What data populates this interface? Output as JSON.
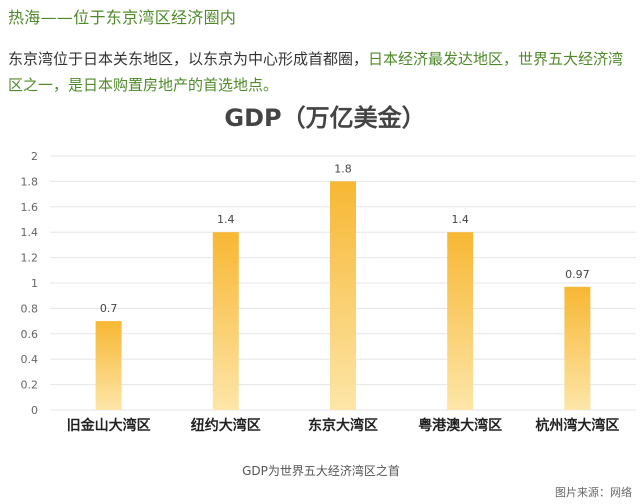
{
  "section_heading": "热海——位于东京湾区经济圈内",
  "intro": {
    "plain": "东京湾位于日本关东地区，以东京为中心形成首都圈，",
    "highlight": "日本经济最发达地区，世界五大经济湾区之一，是日本购置房地产的首选地点。"
  },
  "chart_data": {
    "type": "bar",
    "title": "GDP（万亿美金）",
    "categories": [
      "旧金山大湾区",
      "纽约大湾区",
      "东京大湾区",
      "粤港澳大湾区",
      "杭州湾大湾区"
    ],
    "values": [
      0.7,
      1.4,
      1.8,
      1.4,
      0.97
    ],
    "value_labels": [
      "0.7",
      "1.4",
      "1.8",
      "1.4",
      "0.97"
    ],
    "yticks": [
      "0",
      "0.2",
      "0.4",
      "0.6",
      "0.8",
      "1",
      "1.2",
      "1.4",
      "1.6",
      "1.8",
      "2"
    ],
    "ylim": [
      0,
      2
    ],
    "grid": true,
    "bar_color": "#f7b733",
    "bar_color_light": "#fde6a8"
  },
  "caption": "GDP为世界五大经济湾区之首",
  "source": "图片来源：网络"
}
